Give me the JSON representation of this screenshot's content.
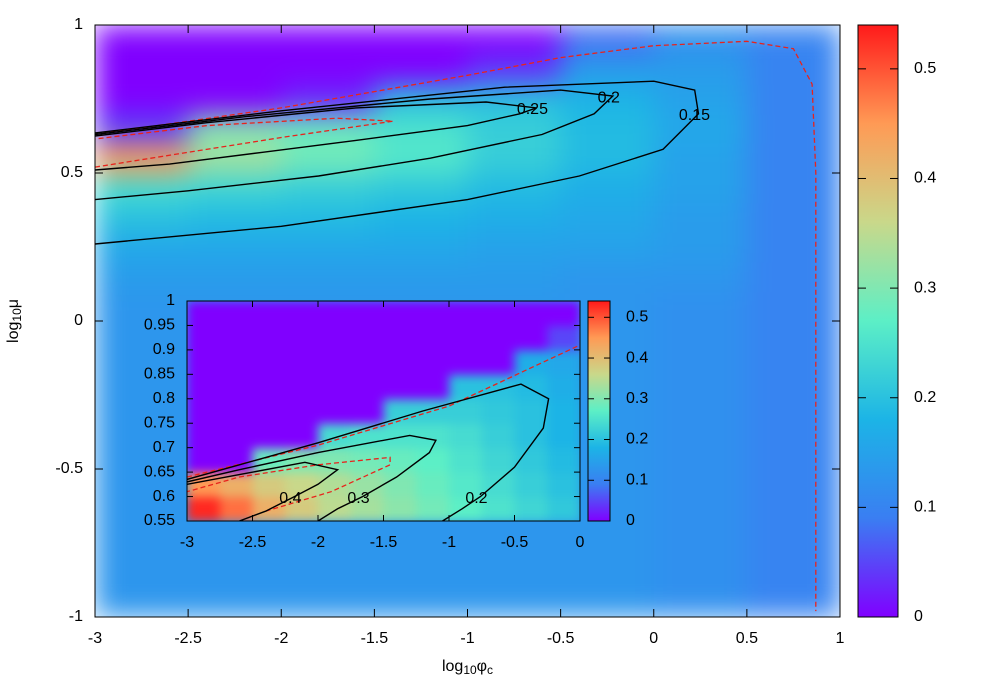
{
  "chart_data": [
    {
      "type": "heatmap",
      "xlabel": [
        "log",
        "10",
        "φ",
        "c"
      ],
      "ylabel": [
        "log",
        "10",
        "μ"
      ],
      "xlim": [
        -3,
        1
      ],
      "ylim": [
        -1,
        1
      ],
      "xticks": [
        -3,
        -2.5,
        -2,
        -1.5,
        -1,
        -0.5,
        0,
        0.5,
        1
      ],
      "yticks": [
        -1,
        -0.5,
        0,
        0.5,
        1
      ],
      "zlim": [
        0,
        0.54
      ],
      "zticks": [
        0,
        0.1,
        0.2,
        0.3,
        0.4,
        0.5
      ],
      "colormap": [
        "#8000ff",
        "#3a7ef2",
        "#1cb4e6",
        "#5cefc6",
        "#c9d88a",
        "#ff9a55",
        "#ff1a1a"
      ],
      "x_bins": [
        -3,
        -2.5,
        -2,
        -1.5,
        -1,
        -0.5,
        0,
        0.5,
        1
      ],
      "y_bins": [
        -1,
        -0.9,
        -0.8,
        -0.7,
        -0.6,
        -0.5,
        -0.4,
        -0.3,
        -0.2,
        -0.1,
        0,
        0.1,
        0.2,
        0.3,
        0.4,
        0.5,
        0.6,
        0.7,
        0.8,
        0.9,
        1
      ],
      "z": [
        [
          0.13,
          0.13,
          0.13,
          0.13,
          0.13,
          0.13,
          0.12,
          0.1
        ],
        [
          0.13,
          0.13,
          0.13,
          0.13,
          0.13,
          0.13,
          0.12,
          0.1
        ],
        [
          0.13,
          0.13,
          0.13,
          0.13,
          0.13,
          0.13,
          0.12,
          0.1
        ],
        [
          0.13,
          0.13,
          0.13,
          0.13,
          0.13,
          0.13,
          0.12,
          0.1
        ],
        [
          0.13,
          0.13,
          0.13,
          0.13,
          0.13,
          0.13,
          0.12,
          0.1
        ],
        [
          0.13,
          0.13,
          0.13,
          0.13,
          0.13,
          0.13,
          0.12,
          0.1
        ],
        [
          0.13,
          0.13,
          0.13,
          0.13,
          0.13,
          0.13,
          0.12,
          0.1
        ],
        [
          0.13,
          0.13,
          0.13,
          0.13,
          0.13,
          0.13,
          0.12,
          0.1
        ],
        [
          0.13,
          0.13,
          0.13,
          0.13,
          0.13,
          0.13,
          0.12,
          0.1
        ],
        [
          0.13,
          0.13,
          0.13,
          0.13,
          0.13,
          0.13,
          0.12,
          0.1
        ],
        [
          0.13,
          0.13,
          0.13,
          0.13,
          0.13,
          0.13,
          0.12,
          0.1
        ],
        [
          0.14,
          0.14,
          0.14,
          0.14,
          0.14,
          0.13,
          0.13,
          0.1
        ],
        [
          0.16,
          0.16,
          0.16,
          0.16,
          0.15,
          0.15,
          0.14,
          0.1
        ],
        [
          0.2,
          0.19,
          0.19,
          0.18,
          0.17,
          0.16,
          0.14,
          0.1
        ],
        [
          0.24,
          0.23,
          0.22,
          0.21,
          0.19,
          0.17,
          0.15,
          0.1
        ],
        [
          0.45,
          0.33,
          0.29,
          0.26,
          0.22,
          0.19,
          0.15,
          0.1
        ],
        [
          0.05,
          0.3,
          0.28,
          0.25,
          0.22,
          0.19,
          0.16,
          0.1
        ],
        [
          0,
          0,
          0.03,
          0.2,
          0.2,
          0.18,
          0.15,
          0.1
        ],
        [
          0,
          0,
          0,
          0,
          0.04,
          0.14,
          0.14,
          0.1
        ],
        [
          0,
          0,
          0,
          0,
          0,
          0.08,
          0.12,
          0.1
        ]
      ],
      "contour_color": "#000000",
      "contours": [
        {
          "level": 0.25,
          "x": [
            -3,
            -2.6,
            -2.1,
            -1.6,
            -1.0,
            -0.72,
            -0.63,
            -0.9,
            -1.6,
            -2.4,
            -3
          ],
          "y": [
            0.51,
            0.53,
            0.57,
            0.61,
            0.66,
            0.7,
            0.72,
            0.74,
            0.72,
            0.67,
            0.625
          ]
        },
        {
          "level": 0.2,
          "x": [
            -3,
            -2.5,
            -1.8,
            -1.2,
            -0.6,
            -0.32,
            -0.22,
            -0.5,
            -1.2,
            -2.2,
            -3
          ],
          "y": [
            0.41,
            0.44,
            0.49,
            0.55,
            0.63,
            0.7,
            0.76,
            0.78,
            0.75,
            0.69,
            0.63
          ]
        },
        {
          "level": 0.15,
          "x": [
            -3,
            -2,
            -1,
            -0.4,
            0.05,
            0.24,
            0.22,
            0,
            -0.8,
            -2,
            -3
          ],
          "y": [
            0.26,
            0.32,
            0.41,
            0.49,
            0.58,
            0.7,
            0.78,
            0.81,
            0.79,
            0.71,
            0.635
          ]
        }
      ],
      "dashed_color": "#e8231c",
      "dashed_contours": [
        {
          "x": [
            -3,
            -2.5,
            -2,
            -1.4,
            -1.7,
            -2.4,
            -3
          ],
          "y": [
            0.52,
            0.57,
            0.62,
            0.675,
            0.685,
            0.66,
            0.615
          ]
        },
        {
          "x": [
            -3,
            -2,
            -1,
            -0.5,
            0,
            0.5,
            0.75,
            0.85,
            0.87,
            0.87
          ],
          "y": [
            0.63,
            0.72,
            0.83,
            0.89,
            0.93,
            0.945,
            0.92,
            0.8,
            0.5,
            -0.98
          ]
        }
      ]
    },
    {
      "type": "heatmap",
      "xlim": [
        -3,
        0
      ],
      "ylim": [
        0.55,
        1
      ],
      "xticks": [
        -3,
        -2.5,
        -2,
        -1.5,
        -1,
        -0.5,
        0
      ],
      "yticks": [
        0.55,
        0.6,
        0.65,
        0.7,
        0.75,
        0.8,
        0.85,
        0.9,
        0.95,
        1
      ],
      "zlim": [
        0,
        0.54
      ],
      "zticks": [
        0,
        0.1,
        0.2,
        0.3,
        0.4,
        0.5
      ],
      "colormap": [
        "#8000ff",
        "#3a7ef2",
        "#1cb4e6",
        "#5cefc6",
        "#c9d88a",
        "#ff9a55",
        "#ff1a1a"
      ],
      "x_bins": [
        -3,
        -2.75,
        -2.5,
        -2.25,
        -2,
        -1.75,
        -1.5,
        -1.25,
        -1,
        -0.75,
        -0.5,
        -0.25,
        0
      ],
      "y_bins": [
        0.55,
        0.6,
        0.65,
        0.7,
        0.75,
        0.8,
        0.85,
        0.9,
        0.95,
        1
      ],
      "z": [
        [
          0.53,
          0.48,
          0.42,
          0.38,
          0.35,
          0.33,
          0.31,
          0.29,
          0.27,
          0.25,
          0.23,
          0.21
        ],
        [
          0.45,
          0.42,
          0.38,
          0.36,
          0.34,
          0.32,
          0.3,
          0.28,
          0.26,
          0.24,
          0.22,
          0.2
        ],
        [
          0,
          0,
          0.28,
          0.3,
          0.3,
          0.29,
          0.28,
          0.27,
          0.25,
          0.23,
          0.21,
          0.19
        ],
        [
          0,
          0,
          0,
          0,
          0.24,
          0.25,
          0.25,
          0.25,
          0.24,
          0.22,
          0.2,
          0.18
        ],
        [
          0,
          0,
          0,
          0,
          0,
          0,
          0.22,
          0.22,
          0.22,
          0.21,
          0.2,
          0.18
        ],
        [
          0,
          0,
          0,
          0,
          0,
          0,
          0,
          0,
          0.2,
          0.2,
          0.19,
          0.17
        ],
        [
          0,
          0,
          0,
          0,
          0,
          0,
          0,
          0,
          0,
          0,
          0.17,
          0.16
        ],
        [
          0,
          0,
          0,
          0,
          0,
          0,
          0,
          0,
          0,
          0,
          0,
          0.05
        ],
        [
          0,
          0,
          0,
          0,
          0,
          0,
          0,
          0,
          0,
          0,
          0,
          0
        ]
      ],
      "contour_color": "#000000",
      "contours": [
        {
          "level": 0.4,
          "x": [
            -2.6,
            -2.4,
            -2.18,
            -2.0,
            -1.85,
            -2.1,
            -2.6,
            -3
          ],
          "y": [
            0.55,
            0.57,
            0.6,
            0.625,
            0.655,
            0.67,
            0.645,
            0.625
          ]
        },
        {
          "level": 0.3,
          "x": [
            -2.0,
            -1.85,
            -1.66,
            -1.4,
            -1.15,
            -1.1,
            -1.3,
            -2.0,
            -2.6,
            -3
          ],
          "y": [
            0.55,
            0.575,
            0.6,
            0.64,
            0.69,
            0.715,
            0.725,
            0.69,
            0.655,
            0.63
          ]
        },
        {
          "level": 0.2,
          "x": [
            -1.05,
            -0.9,
            -0.76,
            -0.5,
            -0.28,
            -0.24,
            -0.45,
            -1.2,
            -2,
            -2.6,
            -3
          ],
          "y": [
            0.55,
            0.575,
            0.6,
            0.66,
            0.74,
            0.8,
            0.83,
            0.775,
            0.71,
            0.665,
            0.635
          ]
        }
      ],
      "dashed_color": "#e8231c",
      "dashed_contours": [
        {
          "x": [
            -2.4,
            -1.9,
            -1.45,
            -1.45,
            -2.0,
            -2.6,
            -3
          ],
          "y": [
            0.57,
            0.61,
            0.665,
            0.68,
            0.665,
            0.64,
            0.61
          ]
        },
        {
          "x": [
            -3,
            -2,
            -1,
            0
          ],
          "y": [
            0.64,
            0.705,
            0.785,
            0.91
          ]
        }
      ]
    }
  ]
}
